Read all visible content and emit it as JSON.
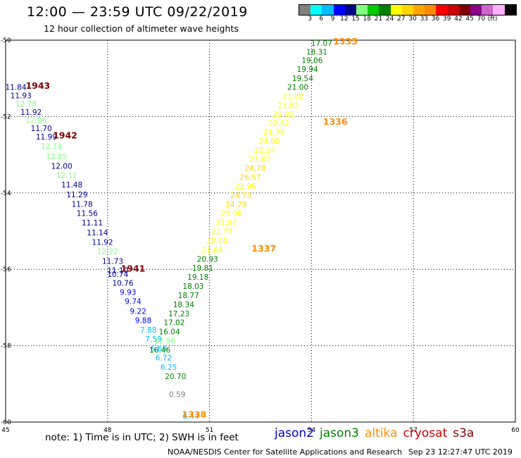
{
  "header": {
    "title": "12:00 — 23:59 UTC 09/22/2019",
    "subtitle": "12 hour collection of altimeter wave heights"
  },
  "color_scale": {
    "colors": [
      "#808080",
      "#00ffff",
      "#00bfff",
      "#0000ff",
      "#00008b",
      "#80ff80",
      "#00cc00",
      "#008000",
      "#ffff00",
      "#ffd700",
      "#ffa500",
      "#ff8c00",
      "#ff0000",
      "#cc0000",
      "#800000",
      "#8b008b",
      "#cc66cc",
      "#ffb0ff",
      "#000000"
    ],
    "ticks": [
      "3",
      "6",
      "9",
      "12",
      "15",
      "18",
      "21",
      "24",
      "27",
      "30",
      "33",
      "36",
      "39",
      "42",
      "45",
      "70",
      "(ft)"
    ]
  },
  "footer": {
    "note": "note: 1) Time is in UTC; 2) SWH is in feet",
    "credit": "NOAA/NESDIS Center for Satellite Applications and Research",
    "timestamp": "Sep 23 12:27:47 UTC 2019"
  },
  "satellites": [
    {
      "name": "jason2",
      "color": "#0000cc"
    },
    {
      "name": "jason3",
      "color": "#008000"
    },
    {
      "name": "altika",
      "color": "#ff8c00"
    },
    {
      "name": "cryosat",
      "color": "#cc0000"
    },
    {
      "name": "s3a",
      "color": "#8b0000"
    }
  ],
  "chart_data": {
    "type": "scatter",
    "title": "12:00 — 23:59 UTC 09/22/2019",
    "subtitle": "12 hour collection of altimeter wave heights",
    "xlim": [
      45,
      60
    ],
    "ylim": [
      -60,
      -50
    ],
    "x_ticks": [
      "45",
      "48",
      "51",
      "54",
      "57",
      "60"
    ],
    "y_ticks": [
      "-50",
      "-52",
      "-54",
      "-56",
      "-58",
      "-60"
    ],
    "grid": true,
    "units": "ft",
    "points": [
      {
        "x": 45.3,
        "y": -51.23,
        "v": "11.84",
        "c": "#00008b"
      },
      {
        "x": 45.45,
        "y": -51.45,
        "v": "11.93",
        "c": "#00008b"
      },
      {
        "x": 45.6,
        "y": -51.66,
        "v": "12.78",
        "c": "#80ff80"
      },
      {
        "x": 45.75,
        "y": -51.88,
        "v": "11.92",
        "c": "#00008b"
      },
      {
        "x": 45.9,
        "y": -52.09,
        "v": "12.06",
        "c": "#80ff80"
      },
      {
        "x": 46.05,
        "y": -52.31,
        "v": "11.70",
        "c": "#00008b"
      },
      {
        "x": 46.2,
        "y": -52.53,
        "v": "11.99",
        "c": "#00008b"
      },
      {
        "x": 46.35,
        "y": -52.78,
        "v": "12.14",
        "c": "#80ff80"
      },
      {
        "x": 46.5,
        "y": -53.04,
        "v": "12.85",
        "c": "#80ff80"
      },
      {
        "x": 46.65,
        "y": -53.29,
        "v": "12.00",
        "c": "#00008b"
      },
      {
        "x": 46.8,
        "y": -53.53,
        "v": "12.11",
        "c": "#80ff80"
      },
      {
        "x": 46.95,
        "y": -53.78,
        "v": "11.48",
        "c": "#00008b"
      },
      {
        "x": 47.1,
        "y": -54.04,
        "v": "11.29",
        "c": "#00008b"
      },
      {
        "x": 47.25,
        "y": -54.29,
        "v": "11.78",
        "c": "#00008b"
      },
      {
        "x": 47.4,
        "y": -54.53,
        "v": "11.56",
        "c": "#00008b"
      },
      {
        "x": 47.55,
        "y": -54.78,
        "v": "11.11",
        "c": "#00008b"
      },
      {
        "x": 47.7,
        "y": -55.04,
        "v": "11.14",
        "c": "#00008b"
      },
      {
        "x": 47.85,
        "y": -55.29,
        "v": "11.92",
        "c": "#00008b"
      },
      {
        "x": 48.0,
        "y": -55.53,
        "v": "12.22",
        "c": "#80ff80"
      },
      {
        "x": 48.15,
        "y": -55.78,
        "v": "11.73",
        "c": "#00008b"
      },
      {
        "x": 48.3,
        "y": -56.02,
        "v": "11.10",
        "c": "#00008b"
      },
      {
        "x": 48.3,
        "y": -56.13,
        "v": "10.74",
        "c": "#00008b"
      },
      {
        "x": 48.45,
        "y": -56.36,
        "v": "10.76",
        "c": "#00008b"
      },
      {
        "x": 48.6,
        "y": -56.6,
        "v": "9.93",
        "c": "#0000ff"
      },
      {
        "x": 48.75,
        "y": -56.84,
        "v": "9.74",
        "c": "#0000ff"
      },
      {
        "x": 48.9,
        "y": -57.09,
        "v": "9.22",
        "c": "#0000ff"
      },
      {
        "x": 49.05,
        "y": -57.33,
        "v": "9.88",
        "c": "#0000ff"
      },
      {
        "x": 49.2,
        "y": -57.58,
        "v": "7.88",
        "c": "#00bfff"
      },
      {
        "x": 49.35,
        "y": -57.82,
        "v": "7.59",
        "c": "#00bfff"
      },
      {
        "x": 49.5,
        "y": -58.07,
        "v": "6.69",
        "c": "#00bfff"
      },
      {
        "x": 49.65,
        "y": -58.31,
        "v": "6.72",
        "c": "#00bfff"
      },
      {
        "x": 49.8,
        "y": -58.56,
        "v": "6.25",
        "c": "#00bfff"
      },
      {
        "x": 50.0,
        "y": -58.8,
        "v": "20.70",
        "c": "#008000"
      },
      {
        "x": 50.05,
        "y": -59.27,
        "v": "0.59",
        "c": "#808080"
      },
      {
        "x": 50.45,
        "y": -59.84,
        "v": "6.44",
        "c": "#00bfff"
      },
      {
        "x": 54.3,
        "y": -50.07,
        "v": "17.07",
        "c": "#008000"
      },
      {
        "x": 54.16,
        "y": -50.3,
        "v": "18.31",
        "c": "#008000"
      },
      {
        "x": 54.02,
        "y": -50.53,
        "v": "19.06",
        "c": "#008000"
      },
      {
        "x": 53.88,
        "y": -50.76,
        "v": "19.94",
        "c": "#008000"
      },
      {
        "x": 53.74,
        "y": -51.0,
        "v": "19.54",
        "c": "#008000"
      },
      {
        "x": 53.6,
        "y": -51.23,
        "v": "21.00",
        "c": "#008000"
      },
      {
        "x": 53.46,
        "y": -51.47,
        "v": "21.82",
        "c": "#ffff00"
      },
      {
        "x": 53.32,
        "y": -51.71,
        "v": "21.83",
        "c": "#ffff00"
      },
      {
        "x": 53.18,
        "y": -51.94,
        "v": "22.01",
        "c": "#ffff00"
      },
      {
        "x": 53.04,
        "y": -52.17,
        "v": "22.52",
        "c": "#ffff00"
      },
      {
        "x": 52.9,
        "y": -52.41,
        "v": "21.79",
        "c": "#ffff00"
      },
      {
        "x": 52.76,
        "y": -52.64,
        "v": "24.00",
        "c": "#ffff00"
      },
      {
        "x": 52.62,
        "y": -52.88,
        "v": "22.24",
        "c": "#ffff00"
      },
      {
        "x": 52.48,
        "y": -53.12,
        "v": "23.62",
        "c": "#ffff00"
      },
      {
        "x": 52.34,
        "y": -53.35,
        "v": "24.78",
        "c": "#ffd700"
      },
      {
        "x": 52.2,
        "y": -53.59,
        "v": "26.57",
        "c": "#ffd700"
      },
      {
        "x": 52.06,
        "y": -53.82,
        "v": "23.96",
        "c": "#ffff00"
      },
      {
        "x": 51.92,
        "y": -54.06,
        "v": "24.73",
        "c": "#ffd700"
      },
      {
        "x": 51.78,
        "y": -54.3,
        "v": "24.79",
        "c": "#ffd700"
      },
      {
        "x": 51.64,
        "y": -54.53,
        "v": "23.06",
        "c": "#ffff00"
      },
      {
        "x": 51.5,
        "y": -54.77,
        "v": "21.97",
        "c": "#ffff00"
      },
      {
        "x": 51.36,
        "y": -55.01,
        "v": "22.77",
        "c": "#ffff00"
      },
      {
        "x": 51.22,
        "y": -55.25,
        "v": "22.20",
        "c": "#ffff00"
      },
      {
        "x": 51.08,
        "y": -55.49,
        "v": "21.84",
        "c": "#ffff00"
      },
      {
        "x": 50.94,
        "y": -55.73,
        "v": "20.93",
        "c": "#008000"
      },
      {
        "x": 50.8,
        "y": -55.96,
        "v": "19.81",
        "c": "#008000"
      },
      {
        "x": 50.66,
        "y": -56.2,
        "v": "19.18",
        "c": "#008000"
      },
      {
        "x": 50.52,
        "y": -56.44,
        "v": "18.03",
        "c": "#008000"
      },
      {
        "x": 50.38,
        "y": -56.68,
        "v": "18.77",
        "c": "#008000"
      },
      {
        "x": 50.24,
        "y": -56.92,
        "v": "18.34",
        "c": "#008000"
      },
      {
        "x": 50.1,
        "y": -57.16,
        "v": "17.23",
        "c": "#008000"
      },
      {
        "x": 49.96,
        "y": -57.39,
        "v": "17.02",
        "c": "#008000"
      },
      {
        "x": 49.82,
        "y": -57.63,
        "v": "16.04",
        "c": "#008000"
      },
      {
        "x": 49.68,
        "y": -57.87,
        "v": "12.96",
        "c": "#80ff80"
      },
      {
        "x": 49.54,
        "y": -58.11,
        "v": "16.46",
        "c": "#008000"
      }
    ],
    "pass_labels": [
      {
        "x": 45.95,
        "y": -51.18,
        "label": "1943",
        "c": "#800000"
      },
      {
        "x": 46.75,
        "y": -52.48,
        "label": "1942",
        "c": "#800000"
      },
      {
        "x": 48.75,
        "y": -55.97,
        "label": "1941",
        "c": "#800000"
      },
      {
        "x": 55.0,
        "y": -50.02,
        "label": "1335",
        "c": "#ff8c00"
      },
      {
        "x": 54.7,
        "y": -52.12,
        "label": "1336",
        "c": "#ff8c00"
      },
      {
        "x": 52.6,
        "y": -55.44,
        "label": "1337",
        "c": "#ff8c00"
      },
      {
        "x": 50.55,
        "y": -59.79,
        "label": "1338",
        "c": "#ff8c00"
      }
    ]
  }
}
